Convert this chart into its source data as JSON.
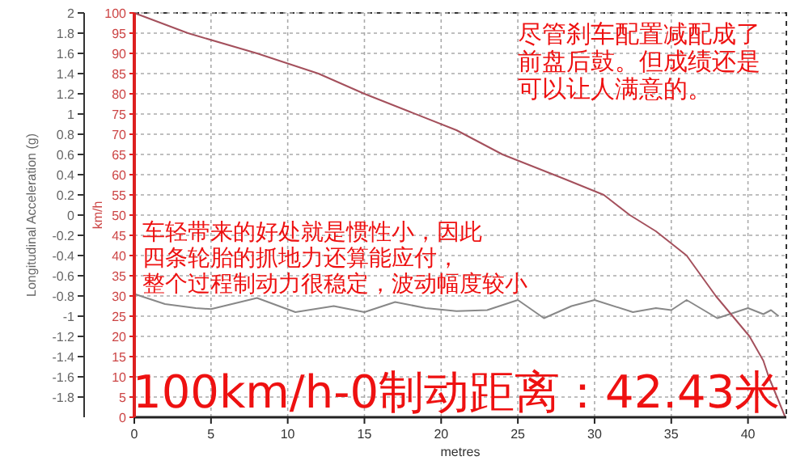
{
  "chart_data": {
    "type": "line",
    "xlabel": "metres",
    "ylabel": "Longitudinal Acceleration (g)",
    "y2label": "km/h",
    "xlim": [
      0,
      42.5
    ],
    "xticks": [
      0,
      5,
      10,
      15,
      20,
      25,
      30,
      35,
      40
    ],
    "ylim": [
      -2,
      2
    ],
    "yticks": [
      2,
      1.8,
      1.6,
      1.4,
      1.2,
      1,
      0.8,
      0.6,
      0.4,
      0.2,
      0,
      -0.2,
      -0.4,
      -0.6,
      -0.8,
      -1,
      -1.2,
      -1.4,
      -1.6,
      -1.8
    ],
    "y2lim": [
      0,
      100
    ],
    "y2ticks": [
      0,
      5,
      10,
      15,
      20,
      25,
      30,
      35,
      40,
      45,
      50,
      55,
      60,
      65,
      70,
      75,
      80,
      85,
      90,
      95,
      100
    ],
    "grid": true,
    "series": [
      {
        "color": "#888888",
        "axis": "y",
        "x": [
          0,
          2,
          4,
          5,
          8,
          10.5,
          13,
          15,
          17,
          19,
          21,
          23,
          25,
          26.7,
          28.5,
          30,
          32.5,
          34,
          35,
          36,
          38,
          40,
          41,
          41.5,
          42
        ],
        "values": [
          -0.78,
          -0.88,
          -0.92,
          -0.93,
          -0.82,
          -0.96,
          -0.9,
          -0.96,
          -0.86,
          -0.92,
          -0.95,
          -0.94,
          -0.84,
          -1.02,
          -0.9,
          -0.84,
          -0.96,
          -0.92,
          -0.94,
          -0.84,
          -1.02,
          -0.92,
          -0.98,
          -0.94,
          -1.0
        ]
      },
      {
        "color": "#a4505c",
        "axis": "y2",
        "x": [
          0,
          3.5,
          8,
          12,
          15,
          18,
          21,
          24,
          26,
          28,
          30.6,
          32.3,
          34,
          36,
          37.9,
          39,
          40.1,
          41,
          41.35,
          42,
          42.43
        ],
        "values": [
          100,
          95,
          90,
          85,
          80,
          75.5,
          71,
          65,
          62,
          59,
          55,
          50,
          46,
          40,
          30,
          25,
          20,
          14,
          10,
          4,
          0
        ]
      }
    ],
    "annotations": [
      "尽管刹车配置减配成了前盘后鼓。但成绩还是可以让人满意的。",
      "车轻带来的好处就是惯性小，因此四条轮胎的抓地力还算能应付，整个过程制动力很稳定，波动幅度较小",
      "100km/h-0制动距离：42.43米"
    ]
  }
}
